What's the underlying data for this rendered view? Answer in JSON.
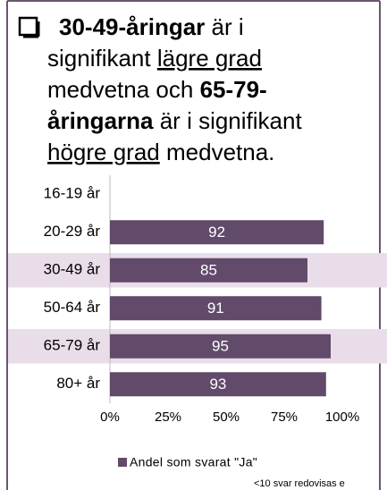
{
  "chart_data": {
    "type": "bar",
    "orientation": "horizontal",
    "title_lines": [
      [
        {
          "text": "30-49-åringar",
          "bold": true
        },
        {
          "text": " är i"
        }
      ],
      [
        {
          "text": "signifikant "
        },
        {
          "text": "lägre grad",
          "underline": true
        }
      ],
      [
        {
          "text": "medvetna och "
        },
        {
          "text": "65-79-",
          "bold": true
        }
      ],
      [
        {
          "text": "åringarna",
          "bold": true
        },
        {
          "text": " är i signifikant"
        }
      ],
      [
        {
          "text": "högre grad",
          "underline": true
        },
        {
          "text": " medvetna."
        }
      ]
    ],
    "categories": [
      "16-19 år",
      "20-29 år",
      "30-49 år",
      "50-64 år",
      "65-79 år",
      "80+ år"
    ],
    "highlight": [
      false,
      false,
      true,
      false,
      true,
      false
    ],
    "highlight_color": "#e9dde9",
    "series": [
      {
        "name": "Andel som svarat \"Ja\"",
        "color": "#624a6b",
        "values": [
          null,
          92,
          85,
          91,
          95,
          93
        ]
      }
    ],
    "xlim": [
      0,
      100
    ],
    "xticks": [
      {
        "value": 0,
        "label": "0%"
      },
      {
        "value": 25,
        "label": "25%"
      },
      {
        "value": 50,
        "label": "50%"
      },
      {
        "value": 75,
        "label": "75%"
      },
      {
        "value": 100,
        "label": "100%"
      }
    ],
    "footnote": "<10 svar redovisas  e"
  }
}
